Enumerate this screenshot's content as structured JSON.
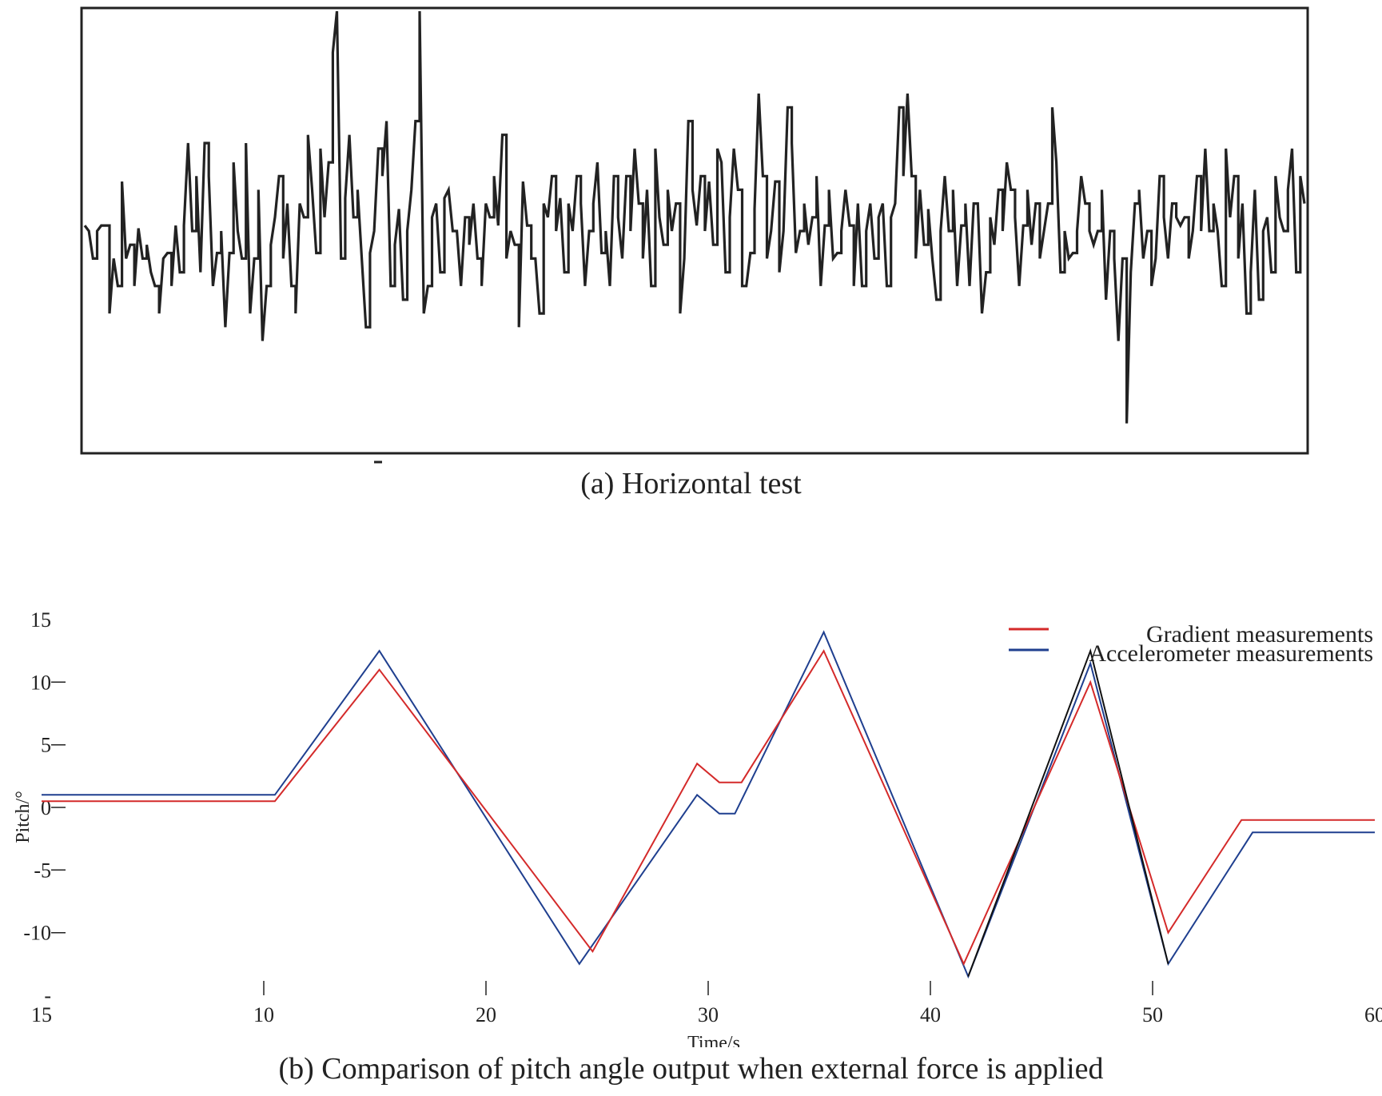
{
  "captions": {
    "a": "(a) Horizontal test",
    "b": "(b) Comparison of pitch angle output when external force is applied"
  },
  "colors": {
    "noise": "#222222",
    "gradient": "#d42a2a",
    "accelerometer": "#1f3f8f",
    "third": "#111111"
  },
  "chart_data": [
    {
      "type": "line",
      "title": "(a) Horizontal test",
      "xlabel": "",
      "ylabel": "",
      "grid": false,
      "note": "no axis tick labels visible; values in relative units",
      "ylim": [
        -8,
        8
      ],
      "series": [
        {
          "values": [
            0.2,
            0.0,
            -1.0,
            0.0,
            0.2,
            0.2,
            -3.0,
            -1.0,
            -2.0,
            1.8,
            -1.0,
            -0.5,
            -2.0,
            0.1,
            -1.0,
            -0.5,
            -1.5,
            -2.0,
            -3.0,
            -1.0,
            -0.8,
            -2.0,
            0.2,
            -1.5,
            0.2,
            3.2,
            0.0,
            2.0,
            -1.5,
            3.2,
            2.0,
            -2.0,
            -0.8,
            0.0,
            -3.5,
            -0.8,
            2.5,
            0.0,
            -1.0,
            3.2,
            -3.0,
            -1.0,
            1.5,
            -4.0,
            -2.0,
            -0.5,
            0.5,
            2.0,
            -1.0,
            1.0,
            -2.0,
            -3.0,
            1.0,
            0.5,
            3.5,
            1.5,
            -0.8,
            3.0,
            0.5,
            2.5,
            6.5,
            8.5,
            -1.0,
            1.2,
            3.5,
            0.5,
            1.5,
            -1.0,
            -3.5,
            -0.8,
            0.0,
            3.0,
            2.0,
            4.0,
            -2.0,
            -0.5,
            0.8,
            -2.5,
            0.0,
            1.5,
            4.0,
            8.5,
            -3.0,
            -2.0,
            0.5,
            1.0,
            -1.5,
            1.2,
            1.5,
            0.0,
            0.0,
            -2.0,
            0.5,
            -0.5,
            1.0,
            -1.0,
            -2.0,
            1.0,
            0.5,
            2.0,
            0.2,
            3.5,
            -1.0,
            0.0,
            -0.5,
            -3.5,
            1.8,
            0.2,
            -1.0,
            -1.0,
            -3.0,
            1.0,
            0.5,
            2.0,
            0.0,
            1.2,
            -1.5,
            1.0,
            0.0,
            2.0,
            1.0,
            -2.0,
            0.0,
            1.0,
            2.5,
            -0.8,
            0.0,
            -2.0,
            2.0,
            0.5,
            -1.0,
            2.0,
            0.0,
            3.0,
            1.0,
            -1.0,
            1.5,
            -2.0,
            3.0,
            0.5,
            -0.5,
            1.5,
            0.0,
            1.0,
            -3.0,
            -1.0,
            4.0,
            1.5,
            0.2,
            2.0,
            0.0,
            1.8,
            -0.5,
            3.0,
            2.5,
            -1.5,
            0.5,
            3.0,
            1.5,
            -2.0,
            -2.0,
            -0.8,
            0.8,
            5.0,
            2.0,
            -1.0,
            0.0,
            1.8,
            -1.5,
            0.0,
            4.5,
            3.2,
            -0.8,
            0.0,
            1.0,
            -0.5,
            0.5,
            2.0,
            -2.0,
            0.2,
            1.5,
            -1.0,
            -0.8,
            0.0,
            1.5,
            0.2,
            -2.0,
            1.0,
            -2.0,
            0.0,
            1.0,
            -1.0,
            0.5,
            1.0,
            -2.0,
            0.5,
            1.0,
            4.5,
            2.0,
            5.0,
            2.0,
            -1.0,
            1.5,
            -0.5,
            0.8,
            -1.0,
            -2.5,
            0.0,
            2.0,
            0.0,
            1.5,
            -2.0,
            0.2,
            1.0,
            -2.0,
            1.0,
            1.0,
            -3.0,
            -1.5,
            0.5,
            -0.5,
            1.5,
            0.0,
            2.5,
            1.5,
            0.5,
            -2.0,
            0.2,
            1.5,
            -0.5,
            1.0,
            -1.0,
            0.0,
            1.0,
            4.5,
            2.5,
            -1.5,
            0.0,
            -1.0,
            -0.8,
            0.0,
            2.0,
            1.0,
            0.0,
            -0.5,
            0.0,
            1.5,
            -2.5,
            0.0,
            -1.0,
            -4.0,
            -1.0,
            -7.0,
            -1.5,
            1.0,
            1.5,
            -1.0,
            0.0,
            -2.0,
            -1.0,
            2.0,
            0.5,
            -1.0,
            1.0,
            0.5,
            0.2,
            0.5,
            -1.0,
            0.0,
            2.0,
            0.0,
            3.0,
            0.0,
            1.0,
            0.0,
            -2.0,
            3.0,
            0.5,
            2.0,
            -1.0,
            1.0,
            -3.0,
            -1.5,
            1.5,
            -2.5,
            0.0,
            0.5,
            -1.5,
            2.0,
            0.5,
            0.0,
            1.5,
            3.0,
            -1.5,
            2.0,
            1.0
          ]
        }
      ]
    },
    {
      "type": "line",
      "title": "(b) Comparison of pitch angle output when external force is applied",
      "xlabel": "Time/s",
      "ylabel": "Pitch/°",
      "xlim": [
        0,
        60
      ],
      "ylim": [
        -15,
        15
      ],
      "grid": false,
      "legend": "top-right",
      "xticks": [
        "15",
        "10",
        "20",
        "30",
        "40",
        "50",
        "60"
      ],
      "yticks": [
        "15",
        "10",
        "5",
        "0",
        "-5",
        "-10",
        "-"
      ],
      "series": [
        {
          "name": "Gradient measurements",
          "x": [
            0,
            10.5,
            15.2,
            24.8,
            29.5,
            30.5,
            31.5,
            35.2,
            41.5,
            47.2,
            50.7,
            54.0,
            60
          ],
          "y": [
            0.5,
            0.5,
            11.0,
            -11.5,
            3.5,
            2.0,
            2.0,
            12.5,
            -12.5,
            10.0,
            -10.0,
            -1.0,
            -1.0
          ]
        },
        {
          "name": "Accelerometer measurements",
          "x": [
            0,
            10.5,
            15.2,
            24.2,
            29.5,
            30.5,
            31.2,
            35.2,
            41.7,
            47.2,
            50.7,
            54.5,
            60
          ],
          "y": [
            1.0,
            1.0,
            12.5,
            -12.5,
            1.0,
            -0.5,
            -0.5,
            14.0,
            -13.5,
            11.5,
            -12.5,
            -2.0,
            -2.0
          ]
        },
        {
          "x": [
            41.7,
            47.2,
            50.7
          ],
          "y": [
            -13.5,
            12.5,
            -12.5
          ]
        }
      ]
    }
  ]
}
